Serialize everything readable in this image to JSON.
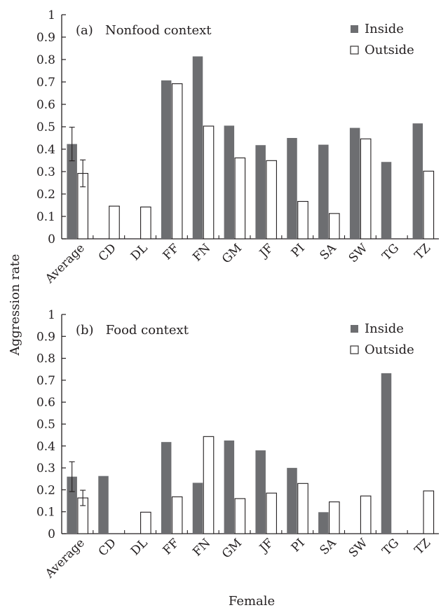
{
  "figure": {
    "ylabel": "Aggression rate",
    "xlabel": "Female"
  },
  "colors": {
    "inside": "#6d6e71",
    "outside": "#ffffff",
    "stroke": "#231f20"
  },
  "chart_data": [
    {
      "type": "bar",
      "title": "(a)   Nonfood context",
      "categories": [
        "Average",
        "CD",
        "DL",
        "FF",
        "FN",
        "GM",
        "JF",
        "PI",
        "SA",
        "SW",
        "TG",
        "TZ"
      ],
      "ytick_labels": [
        "0",
        "0.1",
        "0.2",
        "0.3",
        "0.4",
        "0.5",
        "0.6",
        "0.7",
        "0.8",
        "0.9",
        "1"
      ],
      "ylim": [
        0,
        1
      ],
      "legend_position": "top-right",
      "series": [
        {
          "name": "Inside",
          "values": [
            0.423,
            0,
            0,
            0.707,
            0.814,
            0.505,
            0.418,
            0.45,
            0.42,
            0.495,
            0.343,
            0.515
          ],
          "error_bars": [
            0.075,
            null,
            null,
            null,
            null,
            null,
            null,
            null,
            null,
            null,
            null,
            null
          ]
        },
        {
          "name": "Outside",
          "values": [
            0.292,
            0.146,
            0.142,
            0.692,
            0.503,
            0.361,
            0.349,
            0.167,
            0.113,
            0.446,
            0,
            0.302
          ],
          "error_bars": [
            0.06,
            null,
            null,
            null,
            null,
            null,
            null,
            null,
            null,
            null,
            null,
            null
          ]
        }
      ]
    },
    {
      "type": "bar",
      "title": "(b)   Food context",
      "categories": [
        "Average",
        "CD",
        "DL",
        "FF",
        "FN",
        "GM",
        "JF",
        "PI",
        "SA",
        "SW",
        "TG",
        "TZ"
      ],
      "ytick_labels": [
        "0",
        "0.1",
        "0.2",
        "0.3",
        "0.4",
        "0.5",
        "0.6",
        "0.7",
        "0.8",
        "0.9",
        "1"
      ],
      "ylim": [
        0,
        1
      ],
      "legend_position": "top-right",
      "series": [
        {
          "name": "Inside",
          "values": [
            0.26,
            0.263,
            0,
            0.418,
            0.232,
            0.425,
            0.38,
            0.3,
            0.098,
            0,
            0.732,
            0
          ],
          "error_bars": [
            0.068,
            null,
            null,
            null,
            null,
            null,
            null,
            null,
            null,
            null,
            null,
            null
          ]
        },
        {
          "name": "Outside",
          "values": [
            0.163,
            0,
            0.098,
            0.168,
            0.443,
            0.16,
            0.185,
            0.229,
            0.145,
            0.172,
            0,
            0.195
          ],
          "error_bars": [
            0.035,
            null,
            null,
            null,
            null,
            null,
            null,
            null,
            null,
            null,
            null,
            null
          ]
        }
      ]
    }
  ]
}
